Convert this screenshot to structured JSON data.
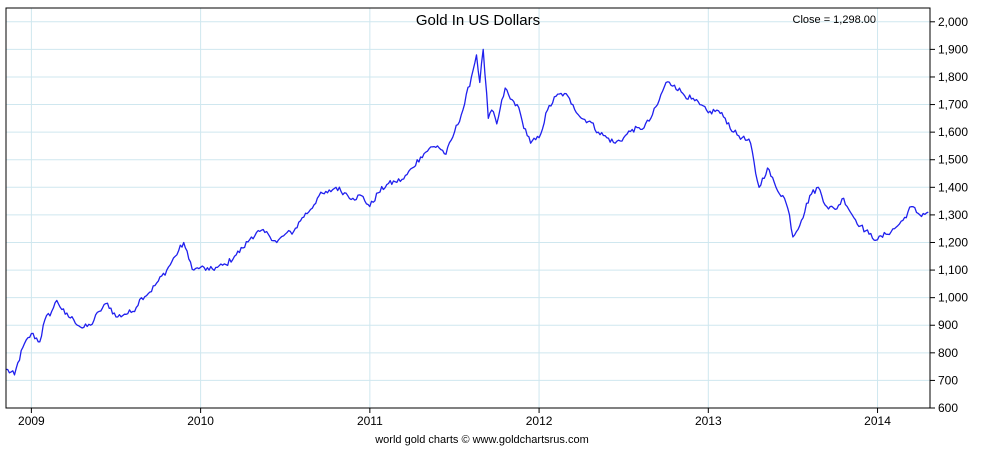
{
  "chart_data": {
    "type": "line",
    "title": "Gold In US Dollars",
    "close_label": "Close = 1,298.00",
    "source": "world gold charts © www.goldchartsrus.com",
    "xlabel": "",
    "ylabel": "",
    "xlim": [
      2008.85,
      2014.31
    ],
    "ylim": [
      600,
      2050
    ],
    "x_ticks": [
      2009,
      2010,
      2011,
      2012,
      2013,
      2014
    ],
    "x_tick_labels": [
      "2009",
      "2010",
      "2011",
      "2012",
      "2013",
      "2014"
    ],
    "y_ticks": [
      600,
      700,
      800,
      900,
      1000,
      1100,
      1200,
      1300,
      1400,
      1500,
      1600,
      1700,
      1800,
      1900,
      2000
    ],
    "y_tick_labels": [
      "600",
      "700",
      "800",
      "900",
      "1,000",
      "1,100",
      "1,200",
      "1,300",
      "1,400",
      "1,500",
      "1,600",
      "1,700",
      "1,800",
      "1,900",
      "2,000"
    ],
    "grid": true,
    "colors": {
      "line": "#2020ee",
      "grid": "#cfe7ef",
      "axis": "#000000"
    },
    "series": [
      {
        "x": [
          2008.85,
          2008.9,
          2008.95,
          2009.0,
          2009.05,
          2009.08,
          2009.12,
          2009.15,
          2009.2,
          2009.25,
          2009.3,
          2009.35,
          2009.4,
          2009.45,
          2009.5,
          2009.55,
          2009.6,
          2009.65,
          2009.7,
          2009.75,
          2009.8,
          2009.85,
          2009.9,
          2009.93,
          2009.96,
          2010.0,
          2010.05,
          2010.1,
          2010.15,
          2010.2,
          2010.25,
          2010.3,
          2010.35,
          2010.4,
          2010.45,
          2010.5,
          2010.55,
          2010.6,
          2010.65,
          2010.7,
          2010.75,
          2010.8,
          2010.85,
          2010.9,
          2010.95,
          2011.0,
          2011.05,
          2011.1,
          2011.15,
          2011.2,
          2011.25,
          2011.3,
          2011.35,
          2011.4,
          2011.45,
          2011.5,
          2011.55,
          2011.6,
          2011.63,
          2011.65,
          2011.67,
          2011.7,
          2011.72,
          2011.75,
          2011.8,
          2011.83,
          2011.87,
          2011.9,
          2011.95,
          2012.0,
          2012.05,
          2012.1,
          2012.15,
          2012.2,
          2012.25,
          2012.3,
          2012.35,
          2012.4,
          2012.45,
          2012.5,
          2012.55,
          2012.6,
          2012.65,
          2012.7,
          2012.75,
          2012.8,
          2012.85,
          2012.9,
          2012.95,
          2013.0,
          2013.05,
          2013.1,
          2013.15,
          2013.2,
          2013.25,
          2013.28,
          2013.3,
          2013.35,
          2013.4,
          2013.45,
          2013.48,
          2013.5,
          2013.55,
          2013.6,
          2013.65,
          2013.7,
          2013.75,
          2013.8,
          2013.85,
          2013.9,
          2013.95,
          2014.0,
          2014.05,
          2014.1,
          2014.15,
          2014.2,
          2014.25,
          2014.3
        ],
        "values": [
          740,
          720,
          820,
          870,
          840,
          920,
          950,
          990,
          940,
          920,
          890,
          900,
          950,
          980,
          930,
          940,
          950,
          1000,
          1020,
          1060,
          1100,
          1150,
          1200,
          1140,
          1100,
          1110,
          1100,
          1110,
          1120,
          1150,
          1180,
          1220,
          1240,
          1230,
          1200,
          1230,
          1240,
          1290,
          1320,
          1370,
          1380,
          1400,
          1380,
          1360,
          1370,
          1330,
          1380,
          1410,
          1420,
          1430,
          1470,
          1510,
          1540,
          1550,
          1520,
          1600,
          1680,
          1800,
          1880,
          1780,
          1900,
          1650,
          1680,
          1630,
          1760,
          1720,
          1700,
          1640,
          1560,
          1580,
          1680,
          1730,
          1740,
          1700,
          1650,
          1640,
          1600,
          1580,
          1560,
          1580,
          1610,
          1610,
          1640,
          1700,
          1780,
          1770,
          1740,
          1720,
          1700,
          1670,
          1680,
          1650,
          1600,
          1580,
          1560,
          1450,
          1400,
          1470,
          1400,
          1360,
          1300,
          1220,
          1280,
          1370,
          1400,
          1330,
          1320,
          1360,
          1300,
          1260,
          1230,
          1210,
          1230,
          1250,
          1280,
          1330,
          1300,
          1310
        ]
      }
    ]
  }
}
